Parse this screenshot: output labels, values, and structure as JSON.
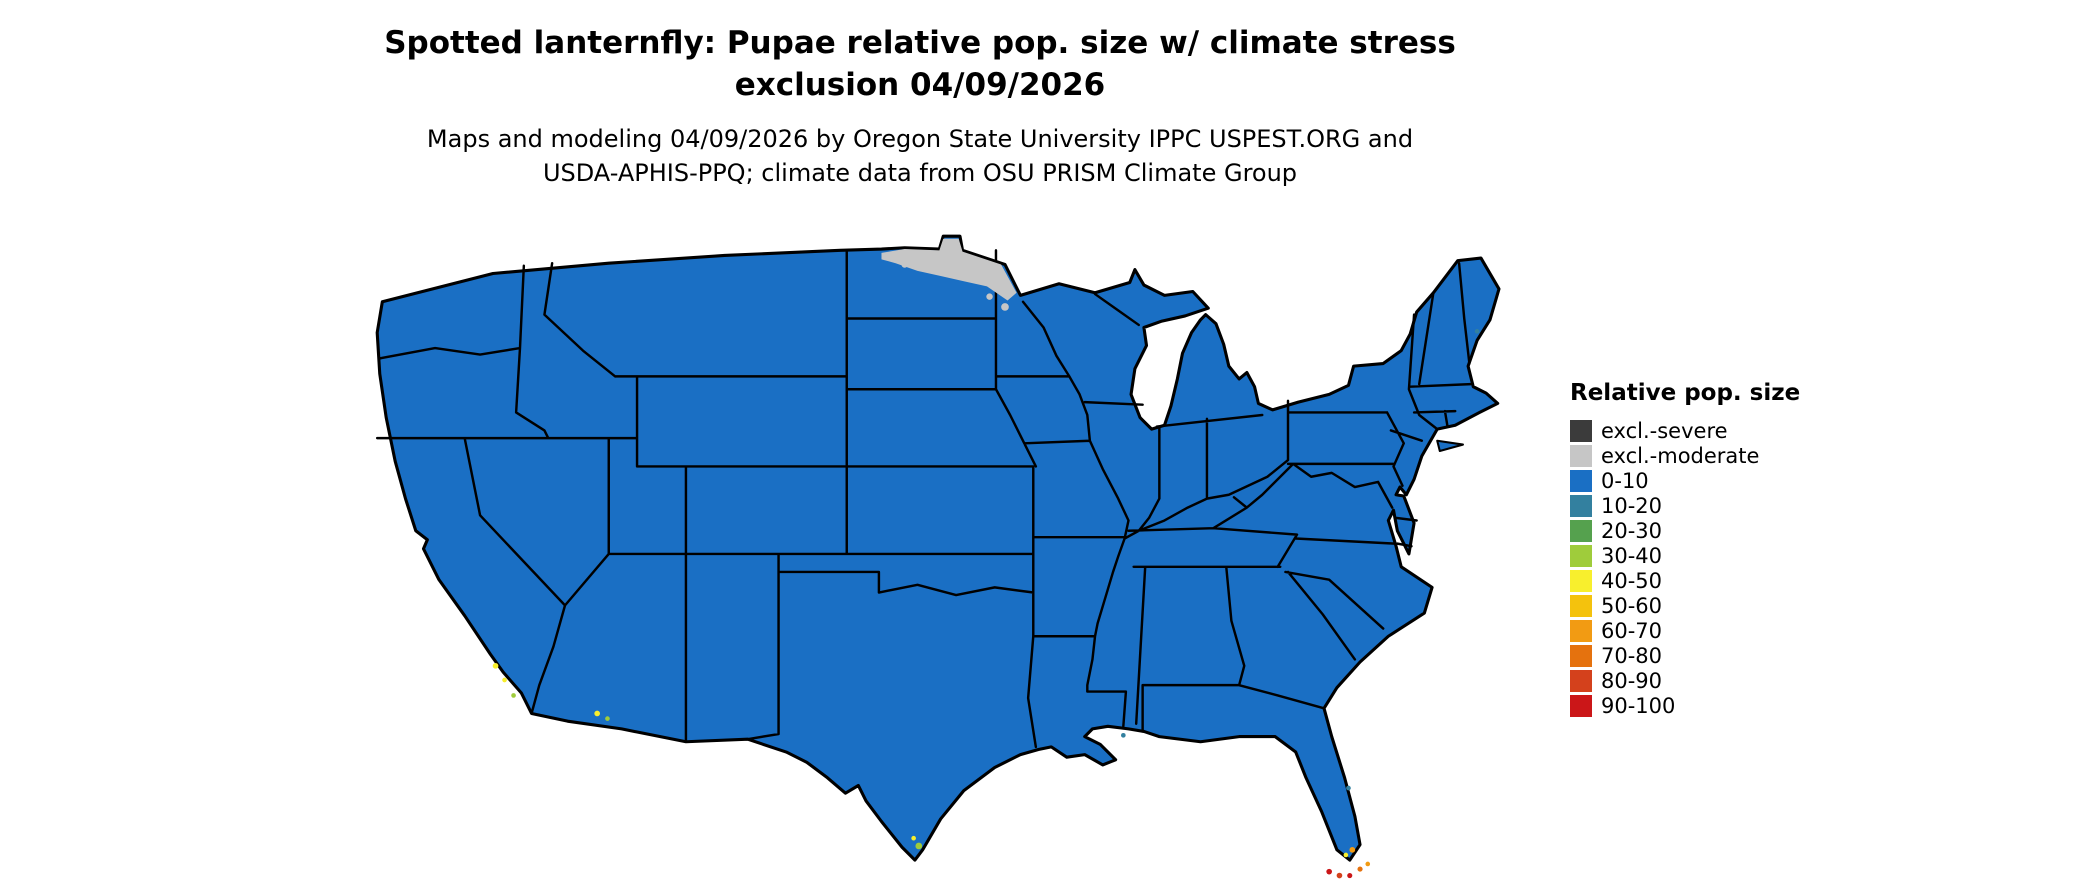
{
  "title": {
    "line1": "Spotted lanternfly: Pupae relative pop. size w/ climate stress",
    "line2": "exclusion 04/09/2026"
  },
  "subtitle": {
    "line1": "Maps and modeling 04/09/2026 by Oregon State University IPPC USPEST.ORG and",
    "line2": "USDA-APHIS-PPQ; climate data from OSU PRISM Climate Group"
  },
  "legend": {
    "title": "Relative pop. size",
    "items": [
      {
        "label": "excl.-severe",
        "color": "#3b3b3b"
      },
      {
        "label": "excl.-moderate",
        "color": "#c6c6c6"
      },
      {
        "label": "0-10",
        "color": "#1a6fc4"
      },
      {
        "label": "10-20",
        "color": "#33809f"
      },
      {
        "label": "20-30",
        "color": "#55a14e"
      },
      {
        "label": "30-40",
        "color": "#9fcc3b"
      },
      {
        "label": "40-50",
        "color": "#f8ef2d"
      },
      {
        "label": "50-60",
        "color": "#f4c20d"
      },
      {
        "label": "60-70",
        "color": "#f29b13"
      },
      {
        "label": "70-80",
        "color": "#e5720e"
      },
      {
        "label": "80-90",
        "color": "#d4411c"
      },
      {
        "label": "90-100",
        "color": "#cb1618"
      }
    ]
  },
  "map": {
    "region": "Contiguous United States",
    "dominant_class": "0-10",
    "exclusion_moderate_region": "northern Minnesota / northeastern North Dakota",
    "colors": {
      "land": "#1a6fc4",
      "border": "#000000",
      "background": "#ffffff"
    }
  }
}
